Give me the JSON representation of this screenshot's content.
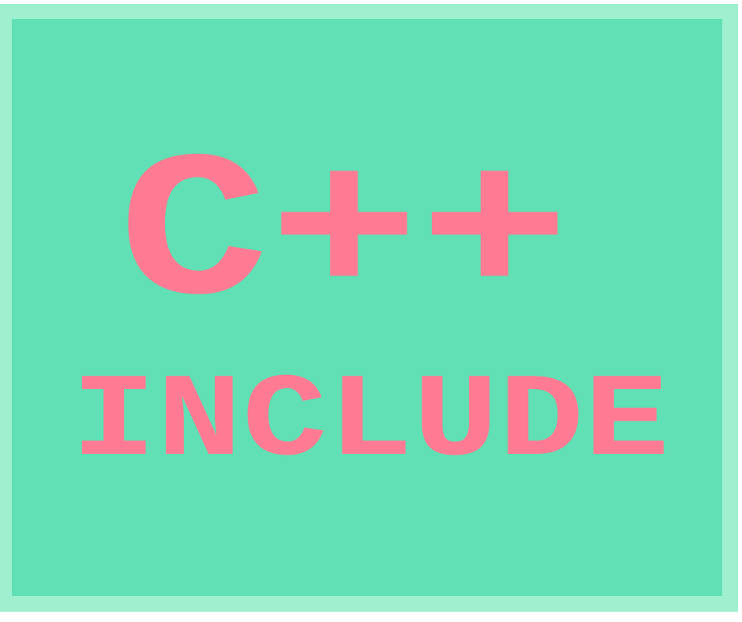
{
  "title": "C++",
  "subtitle": "INCLUDE"
}
